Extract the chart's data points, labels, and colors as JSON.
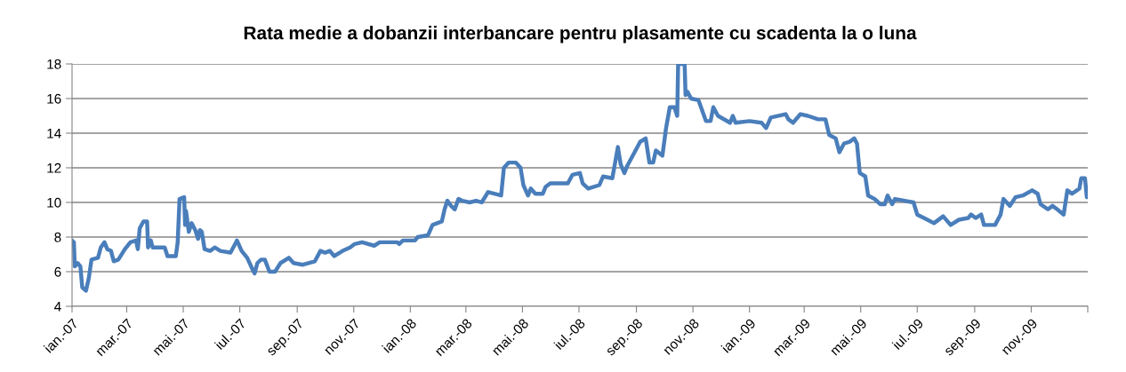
{
  "chart_data": {
    "type": "line",
    "title": "Rata medie a dobanzii interbancare pentru plasamente cu scadenta la o luna",
    "x": [
      "2007-01-01",
      "2007-01-03",
      "2007-01-04",
      "2007-01-07",
      "2007-01-10",
      "2007-01-12",
      "2007-01-16",
      "2007-01-19",
      "2007-01-22",
      "2007-01-29",
      "2007-02-01",
      "2007-02-05",
      "2007-02-08",
      "2007-02-12",
      "2007-02-15",
      "2007-02-20",
      "2007-02-27",
      "2007-03-05",
      "2007-03-11",
      "2007-03-13",
      "2007-03-15",
      "2007-03-19",
      "2007-03-23",
      "2007-03-24",
      "2007-03-27",
      "2007-03-29",
      "2007-04-11",
      "2007-04-14",
      "2007-04-23",
      "2007-04-25",
      "2007-04-27",
      "2007-05-02",
      "2007-05-03",
      "2007-05-04",
      "2007-05-07",
      "2007-05-10",
      "2007-05-14",
      "2007-05-17",
      "2007-05-19",
      "2007-05-21",
      "2007-05-24",
      "2007-05-30",
      "2007-06-04",
      "2007-06-10",
      "2007-06-21",
      "2007-06-25",
      "2007-06-28",
      "2007-07-03",
      "2007-07-09",
      "2007-07-15",
      "2007-07-17",
      "2007-07-20",
      "2007-07-24",
      "2007-07-28",
      "2007-08-02",
      "2007-08-08",
      "2007-08-14",
      "2007-08-23",
      "2007-08-28",
      "2007-09-07",
      "2007-09-20",
      "2007-09-26",
      "2007-10-01",
      "2007-10-06",
      "2007-10-11",
      "2007-10-20",
      "2007-10-28",
      "2007-11-02",
      "2007-11-10",
      "2007-11-23",
      "2007-11-29",
      "2007-12-18",
      "2007-12-20",
      "2007-12-24",
      "2008-01-06",
      "2008-01-09",
      "2008-01-20",
      "2008-01-25",
      "2008-02-04",
      "2008-02-07",
      "2008-02-10",
      "2008-02-14",
      "2008-02-18",
      "2008-02-22",
      "2008-02-26",
      "2008-03-05",
      "2008-03-12",
      "2008-03-18",
      "2008-03-25",
      "2008-04-08",
      "2008-04-11",
      "2008-04-16",
      "2008-04-24",
      "2008-04-29",
      "2008-05-02",
      "2008-05-07",
      "2008-05-10",
      "2008-05-15",
      "2008-05-23",
      "2008-05-26",
      "2008-05-31",
      "2008-06-19",
      "2008-06-24",
      "2008-07-02",
      "2008-07-05",
      "2008-07-11",
      "2008-07-23",
      "2008-07-27",
      "2008-08-06",
      "2008-08-12",
      "2008-08-15",
      "2008-08-19",
      "2008-08-22",
      "2008-08-30",
      "2008-09-05",
      "2008-09-11",
      "2008-09-15",
      "2008-09-19",
      "2008-09-22",
      "2008-09-29",
      "2008-10-03",
      "2008-10-07",
      "2008-10-12",
      "2008-10-15",
      "2008-10-16",
      "2008-10-23",
      "2008-10-24",
      "2008-10-26",
      "2008-10-30",
      "2008-11-07",
      "2008-11-15",
      "2008-11-20",
      "2008-11-23",
      "2008-11-28",
      "2008-12-11",
      "2008-12-14",
      "2008-12-17",
      "2009-01-01",
      "2009-01-14",
      "2009-01-19",
      "2009-01-24",
      "2009-02-09",
      "2009-02-12",
      "2009-02-17",
      "2009-02-25",
      "2009-03-05",
      "2009-03-16",
      "2009-03-24",
      "2009-03-28",
      "2009-04-04",
      "2009-04-08",
      "2009-04-13",
      "2009-04-19",
      "2009-04-24",
      "2009-04-27",
      "2009-04-30",
      "2009-05-06",
      "2009-05-09",
      "2009-05-16",
      "2009-05-22",
      "2009-05-27",
      "2009-05-30",
      "2009-06-04",
      "2009-06-07",
      "2009-06-27",
      "2009-07-01",
      "2009-07-12",
      "2009-07-19",
      "2009-07-29",
      "2009-08-06",
      "2009-08-15",
      "2009-08-25",
      "2009-08-28",
      "2009-09-02",
      "2009-09-08",
      "2009-09-11",
      "2009-09-23",
      "2009-09-29",
      "2009-10-02",
      "2009-10-09",
      "2009-10-15",
      "2009-10-23",
      "2009-11-02",
      "2009-11-08",
      "2009-11-11",
      "2009-11-19",
      "2009-11-24",
      "2009-11-29",
      "2009-12-06",
      "2009-12-10",
      "2009-12-15",
      "2009-12-23",
      "2009-12-25",
      "2009-12-29",
      "2009-12-31"
    ],
    "series": [
      {
        "color": "#4a7ebb",
        "values": [
          7.8,
          7.7,
          6.3,
          6.5,
          6.3,
          5.1,
          4.9,
          5.6,
          6.7,
          6.8,
          7.4,
          7.7,
          7.3,
          7.2,
          6.6,
          6.7,
          7.3,
          7.7,
          7.8,
          7.3,
          8.5,
          8.9,
          8.9,
          7.4,
          7.8,
          7.4,
          7.4,
          6.9,
          6.9,
          7.7,
          10.2,
          10.3,
          8.7,
          9.5,
          8.3,
          8.8,
          8.4,
          7.9,
          8.4,
          8.3,
          7.3,
          7.2,
          7.4,
          7.2,
          7.1,
          7.5,
          7.8,
          7.2,
          6.8,
          6.1,
          5.9,
          6.5,
          6.7,
          6.7,
          6.0,
          6.0,
          6.5,
          6.8,
          6.5,
          6.4,
          6.6,
          7.2,
          7.1,
          7.2,
          6.9,
          7.2,
          7.4,
          7.6,
          7.7,
          7.5,
          7.7,
          7.7,
          7.6,
          7.8,
          7.8,
          8.0,
          8.1,
          8.7,
          8.9,
          9.6,
          10.1,
          9.8,
          9.6,
          10.2,
          10.1,
          10.0,
          10.1,
          10.0,
          10.6,
          10.4,
          12.0,
          12.3,
          12.3,
          12.0,
          11.0,
          10.4,
          10.8,
          10.5,
          10.5,
          10.9,
          11.1,
          11.1,
          11.6,
          11.7,
          11.1,
          10.8,
          11.0,
          11.5,
          11.4,
          13.2,
          12.2,
          11.7,
          12.1,
          12.9,
          13.5,
          13.7,
          12.3,
          12.3,
          13.0,
          12.7,
          14.3,
          15.5,
          15.5,
          15.0,
          18,
          18,
          16.2,
          16.4,
          16.0,
          15.9,
          14.7,
          14.7,
          15.5,
          15.0,
          14.6,
          15.0,
          14.6,
          14.7,
          14.6,
          14.3,
          14.9,
          15.1,
          14.8,
          14.6,
          15.1,
          15.0,
          14.8,
          14.8,
          13.9,
          13.7,
          12.9,
          13.4,
          13.5,
          13.7,
          13.4,
          11.7,
          11.5,
          10.4,
          10.2,
          9.9,
          9.9,
          10.4,
          9.9,
          10.2,
          10.0,
          9.3,
          9.0,
          8.8,
          9.2,
          8.7,
          9.0,
          9.1,
          9.3,
          9.1,
          9.3,
          8.7,
          8.7,
          9.3,
          10.2,
          9.8,
          10.3,
          10.4,
          10.7,
          10.5,
          9.9,
          9.6,
          9.8,
          9.6,
          9.3,
          10.7,
          10.5,
          10.8,
          11.4,
          11.4,
          10.3
        ]
      }
    ],
    "xlim": [
      "2007-01-01",
      "2010-01-01"
    ],
    "xticks": [
      {
        "value": "2007-01-01",
        "label": "ian.-07"
      },
      {
        "value": "2007-03-01",
        "label": "mar.-07"
      },
      {
        "value": "2007-05-01",
        "label": "mai.-07"
      },
      {
        "value": "2007-07-01",
        "label": "iul.-07"
      },
      {
        "value": "2007-09-01",
        "label": "sep.-07"
      },
      {
        "value": "2007-11-01",
        "label": "nov.-07"
      },
      {
        "value": "2008-01-01",
        "label": "ian.-08"
      },
      {
        "value": "2008-03-01",
        "label": "mar.-08"
      },
      {
        "value": "2008-05-01",
        "label": "mai.-08"
      },
      {
        "value": "2008-07-01",
        "label": "iul.-08"
      },
      {
        "value": "2008-09-01",
        "label": "sep.-08"
      },
      {
        "value": "2008-11-01",
        "label": "nov.-08"
      },
      {
        "value": "2009-01-01",
        "label": "ian.-09"
      },
      {
        "value": "2009-03-01",
        "label": "mar.-09"
      },
      {
        "value": "2009-05-01",
        "label": "mai.-09"
      },
      {
        "value": "2009-07-01",
        "label": "iul.-09"
      },
      {
        "value": "2009-09-01",
        "label": "sep.-09"
      },
      {
        "value": "2009-11-01",
        "label": "nov.-09"
      },
      {
        "value": "2010-01-01",
        "label": null
      }
    ],
    "ylim": [
      4,
      18
    ],
    "yticks": [
      4,
      6,
      8,
      10,
      12,
      14,
      16,
      18
    ],
    "grid": "y",
    "legend": false,
    "marker": "none",
    "line_style": "solid"
  }
}
